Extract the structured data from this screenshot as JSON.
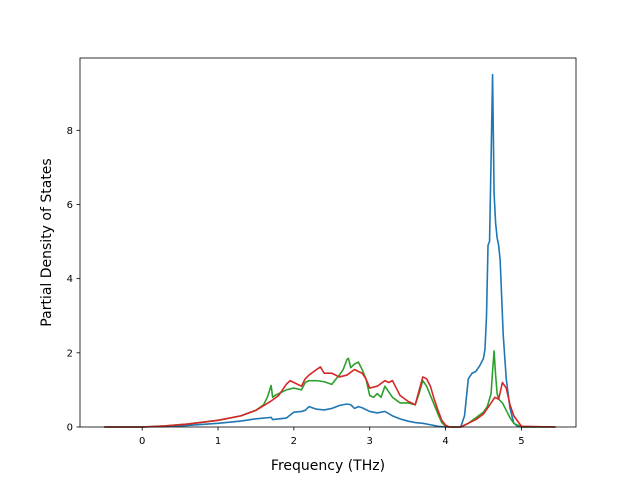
{
  "chart_data": {
    "type": "line",
    "xlabel": "Frequency (THz)",
    "ylabel": "Partial Density of States",
    "xlim": [
      -0.82,
      5.72
    ],
    "ylim": [
      0,
      9.95
    ],
    "xticks": [
      0,
      1,
      2,
      3,
      4,
      5
    ],
    "yticks": [
      0,
      2,
      4,
      6,
      8
    ],
    "grid": false,
    "series": [
      {
        "color": "#1f77b4",
        "x": [
          -0.5,
          0.0,
          0.2,
          0.5,
          1.0,
          1.3,
          1.5,
          1.7,
          1.72,
          1.9,
          2.0,
          2.1,
          2.15,
          2.2,
          2.3,
          2.4,
          2.5,
          2.6,
          2.7,
          2.75,
          2.8,
          2.85,
          2.9,
          3.0,
          3.1,
          3.2,
          3.3,
          3.4,
          3.5,
          3.6,
          3.7,
          3.8,
          3.9,
          4.0,
          4.1,
          4.2,
          4.25,
          4.3,
          4.35,
          4.4,
          4.45,
          4.5,
          4.52,
          4.54,
          4.56,
          4.58,
          4.6,
          4.62,
          4.64,
          4.66,
          4.68,
          4.7,
          4.72,
          4.74,
          4.76,
          4.8,
          4.85,
          4.9,
          4.95,
          5.0,
          5.45
        ],
        "values": [
          0,
          0,
          0.01,
          0.03,
          0.1,
          0.16,
          0.22,
          0.26,
          0.2,
          0.24,
          0.4,
          0.42,
          0.45,
          0.55,
          0.48,
          0.46,
          0.5,
          0.58,
          0.62,
          0.6,
          0.5,
          0.55,
          0.52,
          0.42,
          0.38,
          0.42,
          0.3,
          0.22,
          0.16,
          0.12,
          0.1,
          0.06,
          0.02,
          0.0,
          0.0,
          0.0,
          0.3,
          1.3,
          1.45,
          1.5,
          1.65,
          1.85,
          2.1,
          3.0,
          4.9,
          5.0,
          7.2,
          9.5,
          6.3,
          5.5,
          5.1,
          4.9,
          4.5,
          3.5,
          2.5,
          1.3,
          0.5,
          0.1,
          0.02,
          0,
          0
        ]
      },
      {
        "color": "#2ca02c",
        "x": [
          -0.5,
          0.0,
          0.3,
          0.6,
          1.0,
          1.3,
          1.5,
          1.6,
          1.65,
          1.7,
          1.72,
          1.75,
          1.8,
          1.9,
          2.0,
          2.1,
          2.15,
          2.2,
          2.3,
          2.4,
          2.5,
          2.55,
          2.6,
          2.65,
          2.7,
          2.72,
          2.75,
          2.8,
          2.85,
          2.9,
          2.95,
          3.0,
          3.05,
          3.1,
          3.15,
          3.2,
          3.3,
          3.4,
          3.5,
          3.6,
          3.65,
          3.7,
          3.75,
          3.8,
          3.85,
          3.9,
          3.95,
          4.0,
          4.05,
          4.1,
          4.2,
          4.3,
          4.4,
          4.5,
          4.55,
          4.6,
          4.62,
          4.64,
          4.66,
          4.68,
          4.7,
          4.75,
          4.8,
          4.85,
          4.9,
          5.0,
          5.45
        ],
        "values": [
          0,
          0,
          0.03,
          0.08,
          0.18,
          0.3,
          0.45,
          0.6,
          0.8,
          1.12,
          0.8,
          0.85,
          0.9,
          1.0,
          1.05,
          1.0,
          1.2,
          1.25,
          1.25,
          1.22,
          1.15,
          1.28,
          1.4,
          1.55,
          1.82,
          1.85,
          1.6,
          1.7,
          1.75,
          1.55,
          1.3,
          0.85,
          0.8,
          0.9,
          0.8,
          1.1,
          0.8,
          0.65,
          0.65,
          0.6,
          0.9,
          1.25,
          1.1,
          0.85,
          0.6,
          0.35,
          0.12,
          0.02,
          0,
          0,
          0,
          0.1,
          0.25,
          0.4,
          0.55,
          0.9,
          1.5,
          2.05,
          1.4,
          0.9,
          0.75,
          0.65,
          0.45,
          0.25,
          0.1,
          0.0,
          0
        ]
      },
      {
        "color": "#d62728",
        "x": [
          -0.5,
          0.0,
          0.3,
          0.6,
          1.0,
          1.3,
          1.5,
          1.7,
          1.8,
          1.9,
          1.95,
          2.0,
          2.1,
          2.15,
          2.2,
          2.3,
          2.35,
          2.4,
          2.5,
          2.6,
          2.7,
          2.8,
          2.9,
          2.95,
          3.0,
          3.1,
          3.2,
          3.25,
          3.3,
          3.35,
          3.4,
          3.5,
          3.6,
          3.7,
          3.75,
          3.8,
          3.85,
          3.9,
          3.95,
          4.0,
          4.05,
          4.1,
          4.2,
          4.3,
          4.4,
          4.5,
          4.6,
          4.65,
          4.7,
          4.75,
          4.8,
          4.85,
          4.9,
          5.0,
          5.45
        ],
        "values": [
          0,
          0,
          0.03,
          0.08,
          0.18,
          0.3,
          0.45,
          0.7,
          0.85,
          1.15,
          1.25,
          1.2,
          1.1,
          1.3,
          1.4,
          1.55,
          1.62,
          1.45,
          1.45,
          1.35,
          1.4,
          1.55,
          1.45,
          1.3,
          1.05,
          1.1,
          1.25,
          1.2,
          1.25,
          1.05,
          0.85,
          0.7,
          0.6,
          1.35,
          1.3,
          1.1,
          0.75,
          0.45,
          0.18,
          0.05,
          0,
          0,
          0,
          0.1,
          0.2,
          0.35,
          0.65,
          0.8,
          0.75,
          1.2,
          1.05,
          0.6,
          0.3,
          0.02,
          0
        ]
      }
    ]
  }
}
